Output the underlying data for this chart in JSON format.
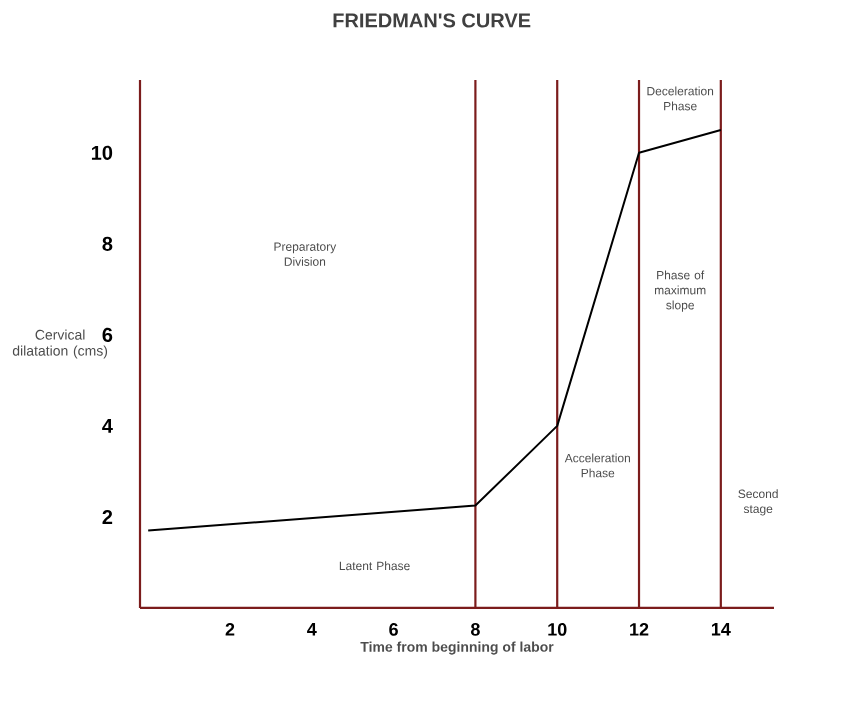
{
  "chart_data": {
    "type": "line",
    "title": "FRIEDMAN'S CURVE",
    "xlabel": "Time from beginning of labor",
    "ylabel": "Cervical dilatation (cms)",
    "x": [
      0,
      8,
      10,
      12,
      14
    ],
    "series": [
      {
        "color": "#000000",
        "values": [
          1.7,
          2.25,
          4,
          10,
          10.5
        ]
      }
    ],
    "xlim": [
      -0.2,
      15.3
    ],
    "ylim": [
      0,
      11.6
    ],
    "xticks": [
      2,
      4,
      6,
      8,
      10,
      12,
      14
    ],
    "yticks": [
      2,
      4,
      6,
      8,
      10
    ],
    "marker": "none",
    "line_style": "solid",
    "ref_lines": [
      {
        "axis": "x",
        "value": 8,
        "color": "#7b1c1c"
      },
      {
        "axis": "x",
        "value": 10,
        "color": "#7b1c1c"
      },
      {
        "axis": "x",
        "value": 12,
        "color": "#7b1c1c"
      },
      {
        "axis": "x",
        "value": 14,
        "color": "#7b1c1c"
      }
    ],
    "annotations": [
      "Preparatory Division",
      "Latent Phase",
      "Acceleration Phase",
      "Phase of maximum slope",
      "Deceleration Phase",
      "Second stage"
    ]
  }
}
